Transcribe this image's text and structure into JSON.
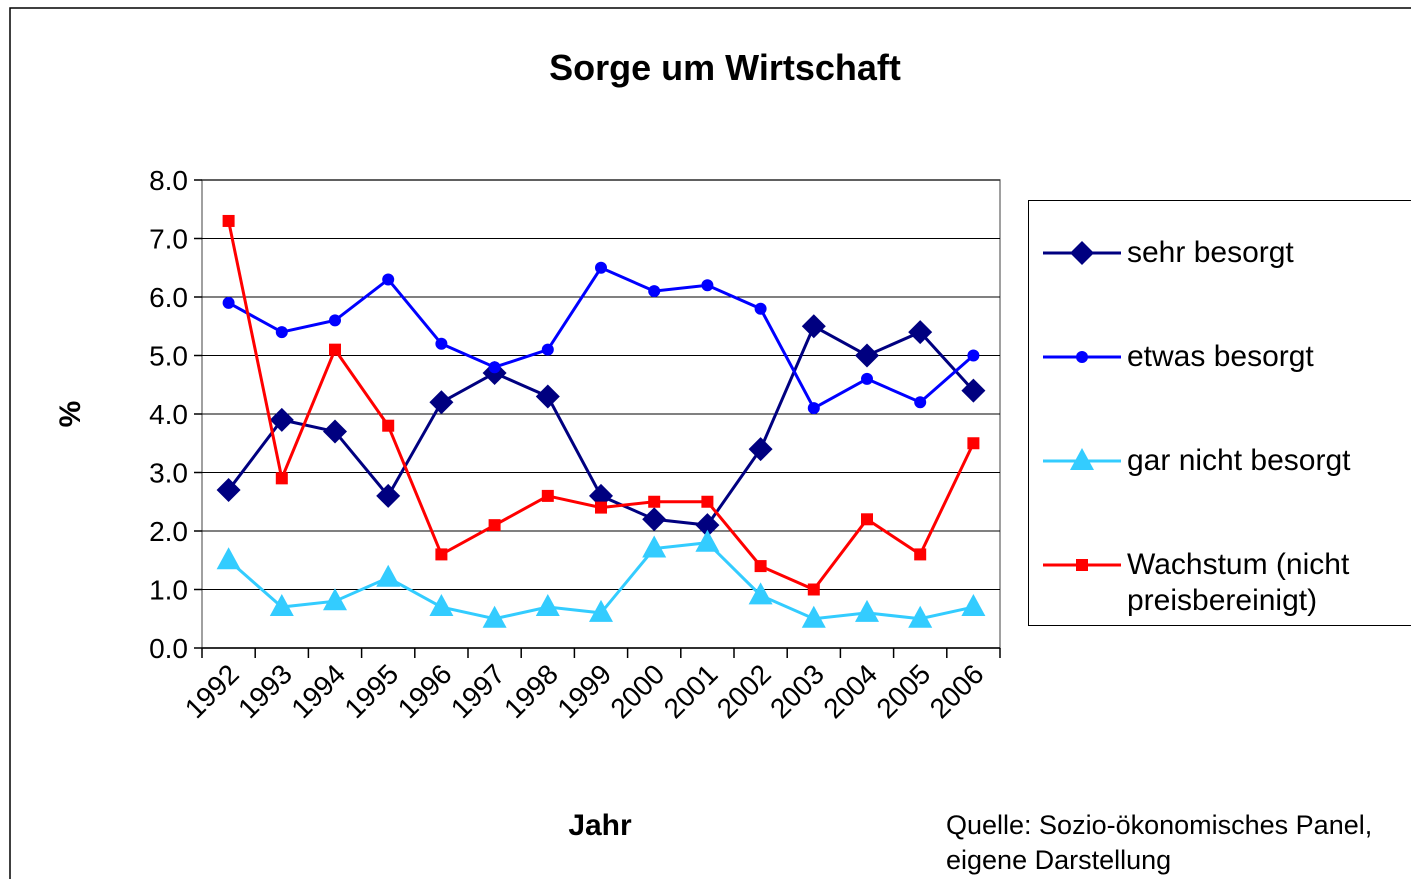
{
  "chart_data": {
    "type": "line",
    "title": "Sorge um Wirtschaft",
    "x_label": "Jahr",
    "y_label": "%",
    "annotation": "Quelle: Sozio-ökonomisches Panel, eigene Darstellung",
    "categories": [
      "1992",
      "1993",
      "1994",
      "1995",
      "1996",
      "1997",
      "1998",
      "1999",
      "2000",
      "2001",
      "2002",
      "2003",
      "2004",
      "2005",
      "2006"
    ],
    "ylim": [
      0,
      8
    ],
    "yticks": [
      {
        "value": 0,
        "label": "0.0"
      },
      {
        "value": 1,
        "label": "1.0"
      },
      {
        "value": 2,
        "label": "2.0"
      },
      {
        "value": 3,
        "label": "3.0"
      },
      {
        "value": 4,
        "label": "4.0"
      },
      {
        "value": 5,
        "label": "5.0"
      },
      {
        "value": 6,
        "label": "6.0"
      },
      {
        "value": 7,
        "label": "7.0"
      },
      {
        "value": 8,
        "label": "8.0"
      }
    ],
    "grid": true,
    "legend": "right",
    "series": [
      {
        "name": "sehr besorgt",
        "color": "#000080",
        "marker": "diamond",
        "values": [
          2.7,
          3.9,
          3.7,
          2.6,
          4.2,
          4.7,
          4.3,
          2.6,
          2.2,
          2.1,
          3.4,
          5.5,
          5.0,
          5.4,
          4.4
        ]
      },
      {
        "name": "etwas besorgt",
        "color": "#0000ff",
        "marker": "circle",
        "values": [
          5.9,
          5.4,
          5.6,
          6.3,
          5.2,
          4.8,
          5.1,
          6.5,
          6.1,
          6.2,
          5.8,
          4.1,
          4.6,
          4.2,
          5.0
        ]
      },
      {
        "name": "gar nicht besorgt",
        "color": "#33ccff",
        "marker": "triangle",
        "values": [
          1.5,
          0.7,
          0.8,
          1.2,
          0.7,
          0.5,
          0.7,
          0.6,
          1.7,
          1.8,
          0.9,
          0.5,
          0.6,
          0.5,
          0.7
        ]
      },
      {
        "name": "Wachstum (nicht preisbereinigt)",
        "color": "#ff0000",
        "marker": "square",
        "values": [
          7.3,
          2.9,
          5.1,
          3.8,
          1.6,
          2.1,
          2.6,
          2.4,
          2.5,
          2.5,
          1.4,
          1.0,
          2.2,
          1.6,
          3.5
        ]
      }
    ]
  }
}
